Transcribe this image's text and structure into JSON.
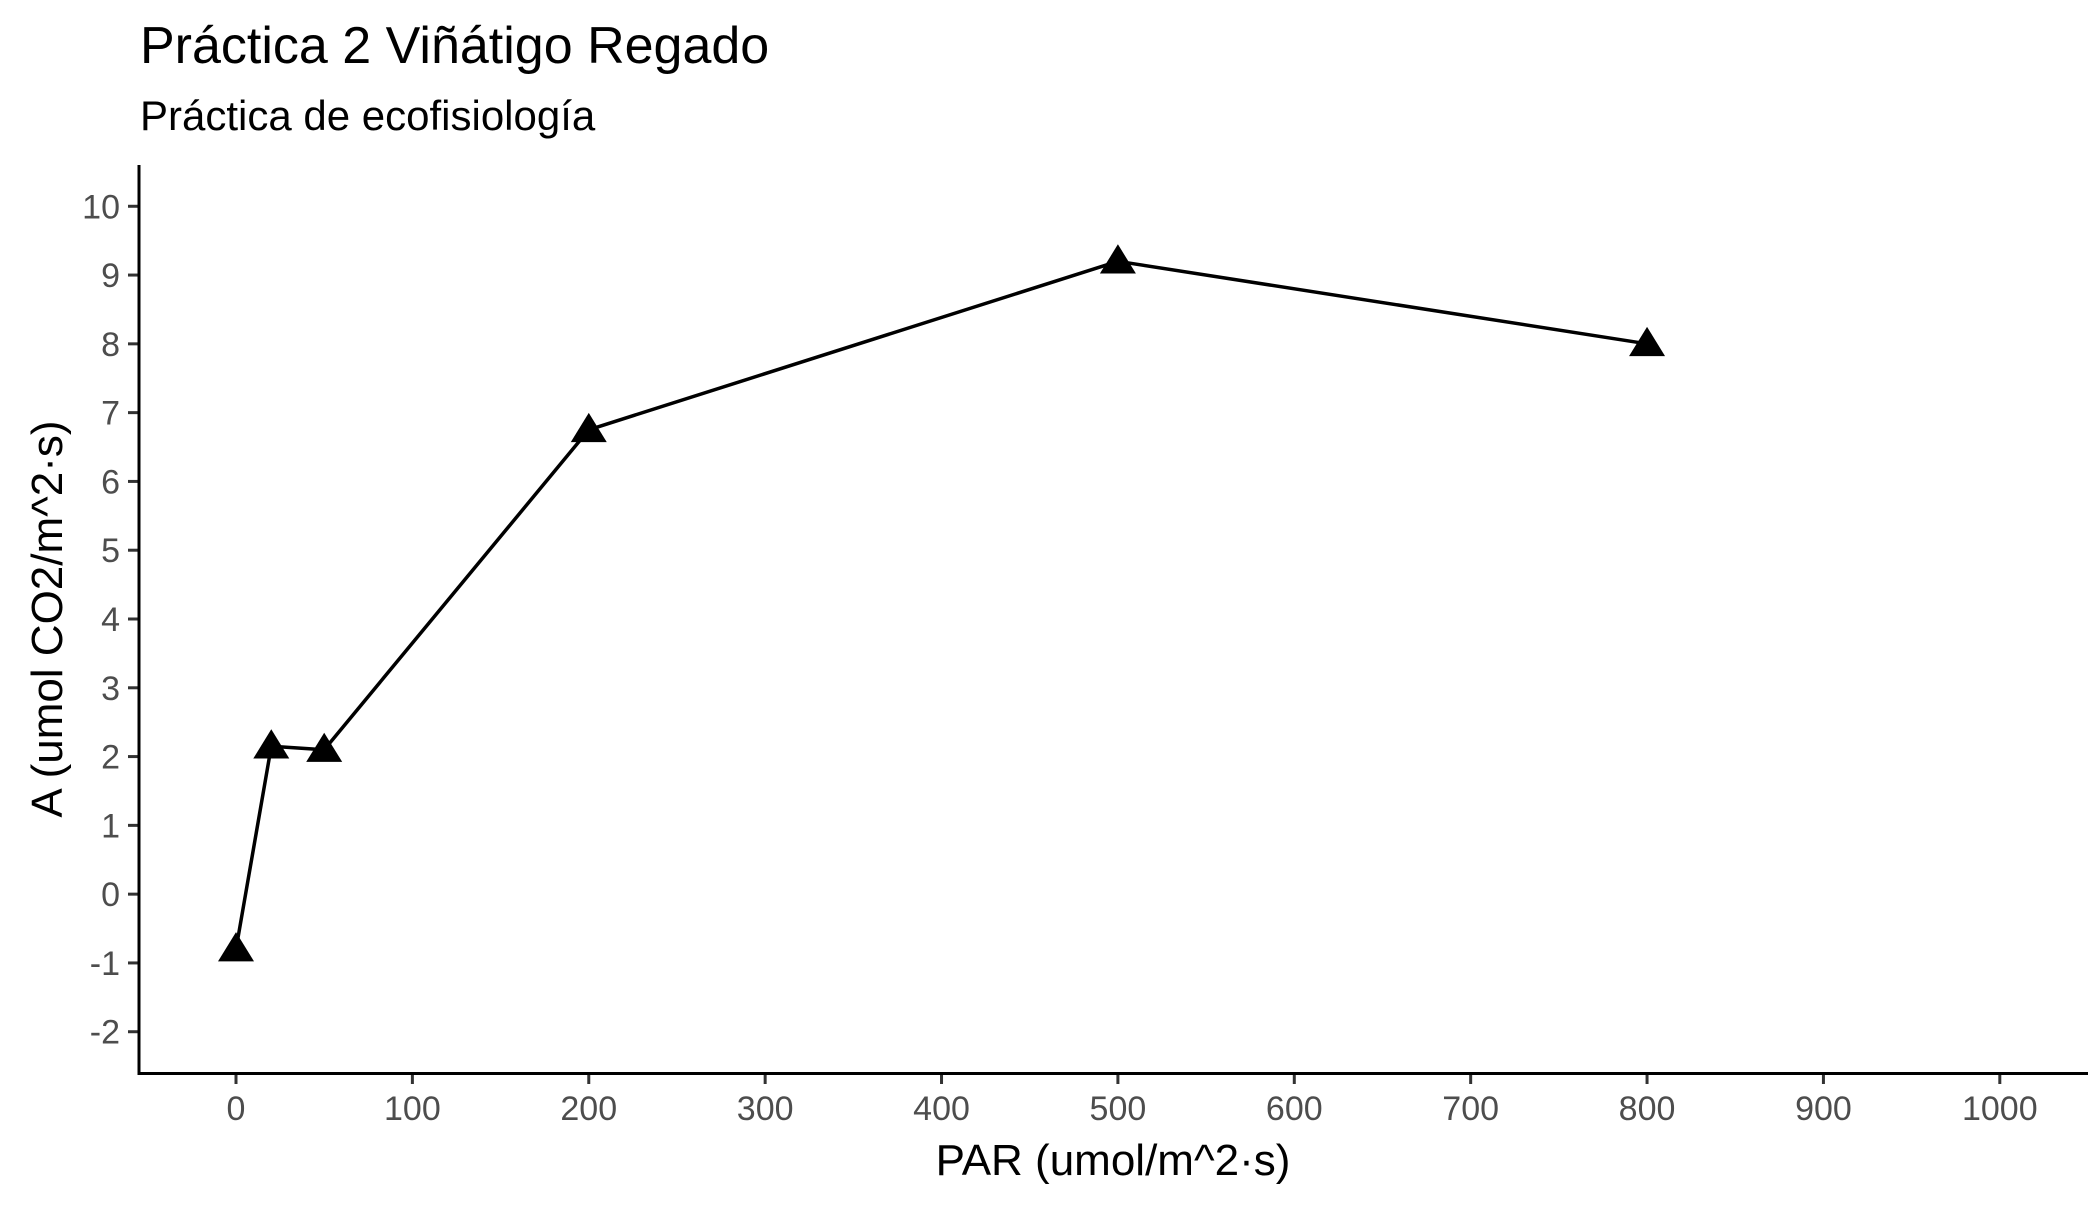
{
  "chart_data": {
    "type": "line",
    "title": "Práctica 2 Viñátigo Regado",
    "subtitle": "Práctica de ecofisiología",
    "xlabel": "PAR (umol/m^2·s)",
    "ylabel": "A (umol CO2/m^2·s)",
    "xlim": [
      -55,
      1050
    ],
    "ylim": [
      -2.6,
      10.6
    ],
    "x_ticks": [
      0,
      100,
      200,
      300,
      400,
      500,
      600,
      700,
      800,
      900,
      1000
    ],
    "y_ticks": [
      -2,
      -1,
      0,
      1,
      2,
      3,
      4,
      5,
      6,
      7,
      8,
      9,
      10
    ],
    "grid": false,
    "series": [
      {
        "marker": "triangle",
        "color": "#000000",
        "x": [
          0,
          20,
          50,
          200,
          500,
          800
        ],
        "y": [
          -0.8,
          2.15,
          2.1,
          6.75,
          9.2,
          8.0
        ]
      }
    ]
  }
}
